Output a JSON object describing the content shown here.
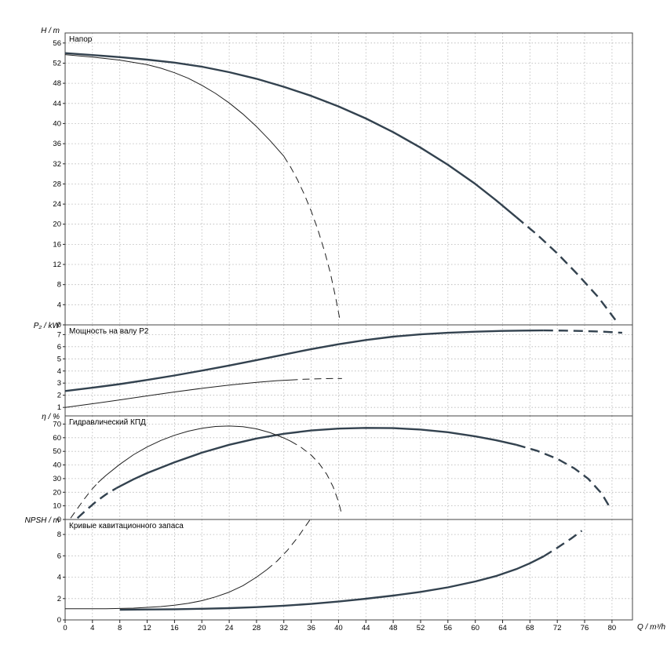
{
  "chart": {
    "x_axis": {
      "label": "Q / m³/h",
      "min": 0,
      "max": 83,
      "tick_min": 0,
      "tick_max": 80,
      "tick_step": 4
    },
    "colors": {
      "thick": "#33424f",
      "thin": "#1f1f1f",
      "grid": "#b4b4b4",
      "border": "#444444"
    }
  },
  "chart_data": [
    {
      "type": "line",
      "title": "Напор",
      "ylabel": "H / m",
      "ylim": [
        0,
        58
      ],
      "yticks": {
        "min": 0,
        "max": 56,
        "step": 4
      },
      "grid": true,
      "series": [
        {
          "name": "head-curve-1",
          "weight": "thick",
          "segments": [
            {
              "dash": false,
              "points": [
                [
                  0,
                  54
                ],
                [
                  4,
                  53.6
                ],
                [
                  8,
                  53.2
                ],
                [
                  12,
                  52.7
                ],
                [
                  16,
                  52.1
                ],
                [
                  20,
                  51.3
                ],
                [
                  24,
                  50.2
                ],
                [
                  28,
                  48.9
                ],
                [
                  32,
                  47.3
                ],
                [
                  36,
                  45.5
                ],
                [
                  40,
                  43.4
                ],
                [
                  44,
                  41
                ],
                [
                  48,
                  38.3
                ],
                [
                  52,
                  35.2
                ],
                [
                  56,
                  31.8
                ],
                [
                  60,
                  28
                ],
                [
                  63,
                  24.8
                ],
                [
                  66,
                  21.4
                ]
              ]
            },
            {
              "dash": true,
              "points": [
                [
                  66,
                  21.4
                ],
                [
                  69,
                  18
                ],
                [
                  72,
                  14.2
                ],
                [
                  75,
                  10
                ],
                [
                  78,
                  5.5
                ],
                [
                  80.5,
                  1
                ]
              ]
            }
          ]
        },
        {
          "name": "head-curve-2",
          "weight": "thin",
          "segments": [
            {
              "dash": false,
              "points": [
                [
                  0,
                  53.7
                ],
                [
                  4,
                  53.2
                ],
                [
                  8,
                  52.6
                ],
                [
                  12,
                  51.7
                ],
                [
                  14,
                  51
                ],
                [
                  16,
                  50.1
                ],
                [
                  18,
                  49
                ],
                [
                  20,
                  47.6
                ],
                [
                  22,
                  46
                ],
                [
                  24,
                  44.1
                ],
                [
                  26,
                  41.9
                ],
                [
                  28,
                  39.4
                ],
                [
                  30,
                  36.6
                ],
                [
                  32,
                  33.5
                ]
              ]
            },
            {
              "dash": true,
              "points": [
                [
                  32,
                  33.5
                ],
                [
                  33,
                  31.3
                ],
                [
                  34,
                  28.8
                ],
                [
                  35,
                  25.9
                ],
                [
                  36,
                  22.6
                ],
                [
                  37,
                  18.8
                ],
                [
                  38,
                  14.4
                ],
                [
                  38.8,
                  10.3
                ],
                [
                  39.6,
                  5.3
                ],
                [
                  40.2,
                  1
                ]
              ]
            }
          ]
        }
      ]
    },
    {
      "type": "line",
      "title": "Мощность на валу P2",
      "ylabel": "P₂ / kW",
      "ylim": [
        0.3,
        7.8
      ],
      "yticks": {
        "min": 1,
        "max": 7,
        "step": 1
      },
      "grid": true,
      "series": [
        {
          "name": "power-curve-1",
          "weight": "thick",
          "segments": [
            {
              "dash": false,
              "points": [
                [
                  0,
                  2.35
                ],
                [
                  4,
                  2.62
                ],
                [
                  8,
                  2.92
                ],
                [
                  12,
                  3.26
                ],
                [
                  16,
                  3.63
                ],
                [
                  20,
                  4.03
                ],
                [
                  24,
                  4.45
                ],
                [
                  28,
                  4.9
                ],
                [
                  32,
                  5.35
                ],
                [
                  36,
                  5.8
                ],
                [
                  40,
                  6.2
                ],
                [
                  44,
                  6.55
                ],
                [
                  48,
                  6.83
                ],
                [
                  52,
                  7.02
                ],
                [
                  56,
                  7.15
                ],
                [
                  60,
                  7.24
                ],
                [
                  64,
                  7.3
                ],
                [
                  67,
                  7.33
                ],
                [
                  70,
                  7.34
                ]
              ]
            },
            {
              "dash": true,
              "points": [
                [
                  70,
                  7.34
                ],
                [
                  73,
                  7.33
                ],
                [
                  76,
                  7.29
                ],
                [
                  79,
                  7.23
                ],
                [
                  81.5,
                  7.15
                ]
              ]
            }
          ]
        },
        {
          "name": "power-curve-2",
          "weight": "thin",
          "segments": [
            {
              "dash": false,
              "points": [
                [
                  0,
                  1
                ],
                [
                  4,
                  1.3
                ],
                [
                  8,
                  1.62
                ],
                [
                  12,
                  1.95
                ],
                [
                  16,
                  2.27
                ],
                [
                  20,
                  2.57
                ],
                [
                  24,
                  2.84
                ],
                [
                  28,
                  3.06
                ],
                [
                  31,
                  3.2
                ],
                [
                  33,
                  3.26
                ]
              ]
            },
            {
              "dash": true,
              "points": [
                [
                  33,
                  3.26
                ],
                [
                  35,
                  3.32
                ],
                [
                  37,
                  3.36
                ],
                [
                  39,
                  3.38
                ],
                [
                  40.5,
                  3.38
                ]
              ]
            }
          ]
        }
      ]
    },
    {
      "type": "line",
      "title": "Гидравлический КПД",
      "ylabel": "η / %",
      "ylim": [
        0,
        76
      ],
      "yticks": {
        "min": 0,
        "max": 70,
        "step": 10
      },
      "grid": true,
      "series": [
        {
          "name": "efficiency-curve-1",
          "weight": "thick",
          "segments": [
            {
              "dash": true,
              "points": [
                [
                  1.8,
                  1
                ],
                [
                  3,
                  6.5
                ],
                [
                  4.5,
                  13
                ],
                [
                  6,
                  18.5
                ],
                [
                  7.5,
                  23
                ]
              ]
            },
            {
              "dash": false,
              "points": [
                [
                  7.5,
                  23
                ],
                [
                  10,
                  29.5
                ],
                [
                  12,
                  34
                ],
                [
                  16,
                  42
                ],
                [
                  20,
                  49
                ],
                [
                  24,
                  54.8
                ],
                [
                  28,
                  59.4
                ],
                [
                  32,
                  62.9
                ],
                [
                  36,
                  65.3
                ],
                [
                  40,
                  66.7
                ],
                [
                  44,
                  67.2
                ],
                [
                  48,
                  67
                ],
                [
                  52,
                  66
                ],
                [
                  56,
                  64
                ],
                [
                  60,
                  61
                ],
                [
                  63,
                  58.2
                ],
                [
                  66,
                  54.8
                ]
              ]
            },
            {
              "dash": true,
              "points": [
                [
                  66,
                  54.8
                ],
                [
                  69,
                  50.5
                ],
                [
                  72,
                  44.5
                ],
                [
                  74.5,
                  37.5
                ],
                [
                  76.5,
                  30
                ],
                [
                  78.5,
                  19
                ],
                [
                  79.8,
                  8
                ]
              ]
            }
          ]
        },
        {
          "name": "efficiency-curve-2",
          "weight": "thin",
          "segments": [
            {
              "dash": true,
              "points": [
                [
                  0.8,
                  1
                ],
                [
                  1.8,
                  8
                ],
                [
                  2.8,
                  15
                ],
                [
                  3.8,
                  21.5
                ],
                [
                  4.8,
                  27
                ]
              ]
            },
            {
              "dash": false,
              "points": [
                [
                  4.8,
                  27
                ],
                [
                  6,
                  32.5
                ],
                [
                  8,
                  40.5
                ],
                [
                  10,
                  47.5
                ],
                [
                  12,
                  53.2
                ],
                [
                  14,
                  58
                ],
                [
                  16,
                  61.8
                ],
                [
                  18,
                  64.8
                ],
                [
                  20,
                  66.9
                ],
                [
                  22,
                  68.2
                ],
                [
                  24,
                  68.6
                ],
                [
                  26,
                  68.1
                ],
                [
                  28,
                  66.5
                ],
                [
                  30,
                  63.7
                ],
                [
                  32,
                  59.8
                ],
                [
                  33,
                  57.4
                ]
              ]
            },
            {
              "dash": true,
              "points": [
                [
                  33,
                  57.4
                ],
                [
                  34.5,
                  53
                ],
                [
                  36,
                  47.2
                ],
                [
                  37.2,
                  40.8
                ],
                [
                  38.3,
                  33
                ],
                [
                  39.2,
                  24
                ],
                [
                  40,
                  13
                ],
                [
                  40.5,
                  3
                ]
              ]
            }
          ]
        }
      ]
    },
    {
      "type": "line",
      "title": "Кривые кавитационного запаса",
      "ylabel": "NPSH / m",
      "ylim": [
        0,
        9.4
      ],
      "yticks": {
        "min": 0,
        "max": 8,
        "step": 2
      },
      "grid": true,
      "series": [
        {
          "name": "npsh-curve-1",
          "weight": "thick",
          "segments": [
            {
              "dash": false,
              "points": [
                [
                  8,
                  0.95
                ],
                [
                  12,
                  0.98
                ],
                [
                  16,
                  1
                ],
                [
                  20,
                  1.04
                ],
                [
                  24,
                  1.1
                ],
                [
                  28,
                  1.2
                ],
                [
                  32,
                  1.33
                ],
                [
                  36,
                  1.5
                ],
                [
                  40,
                  1.72
                ],
                [
                  44,
                  1.98
                ],
                [
                  48,
                  2.28
                ],
                [
                  52,
                  2.62
                ],
                [
                  56,
                  3.05
                ],
                [
                  60,
                  3.6
                ],
                [
                  63,
                  4.1
                ],
                [
                  66,
                  4.75
                ],
                [
                  68,
                  5.3
                ],
                [
                  70,
                  5.95
                ]
              ]
            },
            {
              "dash": true,
              "points": [
                [
                  70,
                  5.95
                ],
                [
                  72,
                  6.75
                ],
                [
                  74,
                  7.6
                ],
                [
                  75.6,
                  8.35
                ]
              ]
            }
          ]
        },
        {
          "name": "npsh-curve-2",
          "weight": "thin",
          "segments": [
            {
              "dash": false,
              "points": [
                [
                  0,
                  1.05
                ],
                [
                  6,
                  1.05
                ],
                [
                  10,
                  1.1
                ],
                [
                  14,
                  1.25
                ],
                [
                  16,
                  1.38
                ],
                [
                  18,
                  1.55
                ],
                [
                  20,
                  1.8
                ],
                [
                  22,
                  2.15
                ],
                [
                  24,
                  2.6
                ],
                [
                  26,
                  3.2
                ],
                [
                  28,
                  4
                ],
                [
                  29.5,
                  4.7
                ]
              ]
            },
            {
              "dash": true,
              "points": [
                [
                  29.5,
                  4.7
                ],
                [
                  31,
                  5.5
                ],
                [
                  32.5,
                  6.5
                ],
                [
                  34,
                  7.7
                ],
                [
                  35.8,
                  9.35
                ]
              ]
            }
          ]
        }
      ]
    }
  ]
}
